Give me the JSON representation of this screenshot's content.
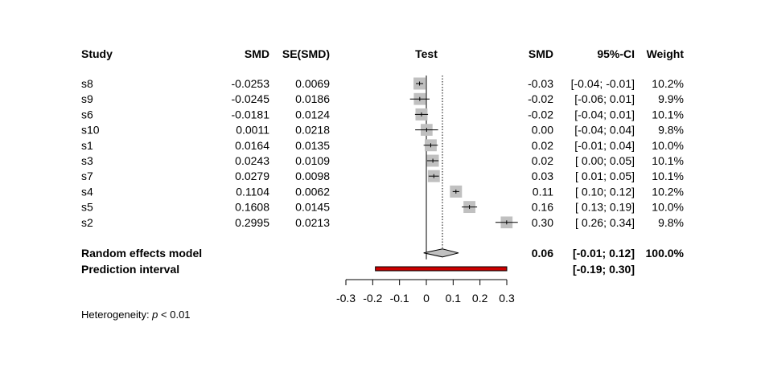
{
  "headers": {
    "study": "Study",
    "smd": "SMD",
    "se": "SE(SMD)",
    "test": "Test",
    "smd2": "SMD",
    "ci": "95%-CI",
    "weight": "Weight"
  },
  "chart_data": {
    "type": "forest",
    "x_axis": {
      "min": -0.3,
      "max": 0.3,
      "ticks": [
        -0.3,
        -0.2,
        -0.1,
        0,
        0.1,
        0.2,
        0.3
      ],
      "tick_labels": [
        "-0.3",
        "-0.2",
        "-0.1",
        "0",
        "0.1",
        "0.2",
        "0.3"
      ]
    },
    "reference_line": 0,
    "pooled_line": 0.06,
    "studies": [
      {
        "name": "s8",
        "smd": "-0.0253",
        "se": "0.0069",
        "est": -0.0253,
        "lo": -0.0388,
        "hi": -0.0118,
        "weight": 10.2,
        "smd_txt": "-0.03",
        "ci_txt": "[-0.04; -0.01]",
        "w_txt": "10.2%"
      },
      {
        "name": "s9",
        "smd": "-0.0245",
        "se": "0.0186",
        "est": -0.0245,
        "lo": -0.061,
        "hi": 0.012,
        "weight": 9.9,
        "smd_txt": "-0.02",
        "ci_txt": "[-0.06;  0.01]",
        "w_txt": "9.9%"
      },
      {
        "name": "s6",
        "smd": "-0.0181",
        "se": "0.0124",
        "est": -0.0181,
        "lo": -0.0424,
        "hi": 0.0062,
        "weight": 10.1,
        "smd_txt": "-0.02",
        "ci_txt": "[-0.04;  0.01]",
        "w_txt": "10.1%"
      },
      {
        "name": "s10",
        "smd": "0.0011",
        "se": "0.0218",
        "est": 0.0011,
        "lo": -0.0416,
        "hi": 0.0438,
        "weight": 9.8,
        "smd_txt": "0.00",
        "ci_txt": "[-0.04;  0.04]",
        "w_txt": "9.8%"
      },
      {
        "name": "s1",
        "smd": "0.0164",
        "se": "0.0135",
        "est": 0.0164,
        "lo": -0.0101,
        "hi": 0.0429,
        "weight": 10.0,
        "smd_txt": "0.02",
        "ci_txt": "[-0.01;  0.04]",
        "w_txt": "10.0%"
      },
      {
        "name": "s3",
        "smd": "0.0243",
        "se": "0.0109",
        "est": 0.0243,
        "lo": 0.0029,
        "hi": 0.0457,
        "weight": 10.1,
        "smd_txt": "0.02",
        "ci_txt": "[ 0.00;  0.05]",
        "w_txt": "10.1%"
      },
      {
        "name": "s7",
        "smd": "0.0279",
        "se": "0.0098",
        "est": 0.0279,
        "lo": 0.0087,
        "hi": 0.0471,
        "weight": 10.1,
        "smd_txt": "0.03",
        "ci_txt": "[ 0.01;  0.05]",
        "w_txt": "10.1%"
      },
      {
        "name": "s4",
        "smd": "0.1104",
        "se": "0.0062",
        "est": 0.1104,
        "lo": 0.0982,
        "hi": 0.1226,
        "weight": 10.2,
        "smd_txt": "0.11",
        "ci_txt": "[ 0.10;  0.12]",
        "w_txt": "10.2%"
      },
      {
        "name": "s5",
        "smd": "0.1608",
        "se": "0.0145",
        "est": 0.1608,
        "lo": 0.1324,
        "hi": 0.1892,
        "weight": 10.0,
        "smd_txt": "0.16",
        "ci_txt": "[ 0.13;  0.19]",
        "w_txt": "10.0%"
      },
      {
        "name": "s2",
        "smd": "0.2995",
        "se": "0.0213",
        "est": 0.2995,
        "lo": 0.2578,
        "hi": 0.3412,
        "weight": 9.8,
        "smd_txt": "0.30",
        "ci_txt": "[ 0.26;  0.34]",
        "w_txt": "9.8%"
      }
    ],
    "random_effects": {
      "label": "Random effects model",
      "est": 0.06,
      "lo": -0.01,
      "hi": 0.12,
      "smd_txt": "0.06",
      "ci_txt": "[-0.01;  0.12]",
      "w_txt": "100.0%"
    },
    "prediction_interval": {
      "label": "Prediction interval",
      "lo": -0.19,
      "hi": 0.3,
      "ci_txt": "[-0.19;  0.30]",
      "color": "#cc0000"
    },
    "heterogeneity": {
      "prefix": "Heterogeneity: ",
      "symbol": "p",
      "suffix": " < 0.01"
    },
    "colors": {
      "square": "#c0c0c0",
      "diamond": "#c0c0c0"
    }
  }
}
